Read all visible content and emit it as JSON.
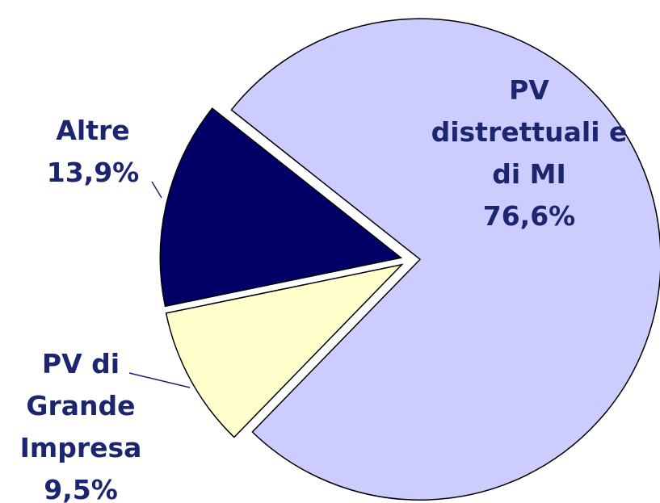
{
  "chart_data": {
    "type": "pie",
    "categories": [
      "PV distrettuali e di MI",
      "PV di Grande Impresa",
      "Altre"
    ],
    "values": [
      76.6,
      9.5,
      13.9
    ],
    "value_labels": [
      "76,6%",
      "9,5%",
      "13,9%"
    ],
    "colors": [
      "#ccccff",
      "#ffffcc",
      "#000066"
    ]
  }
}
